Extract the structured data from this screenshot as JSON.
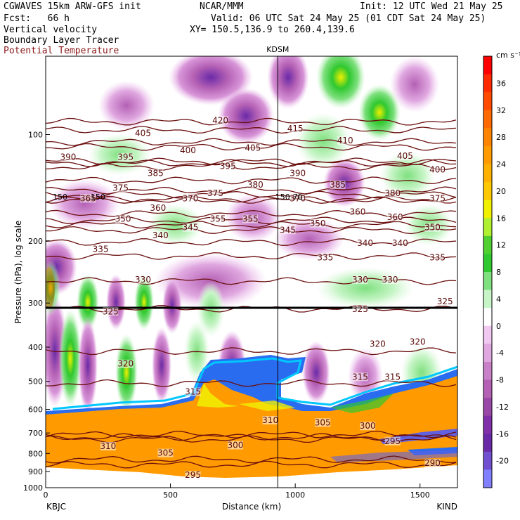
{
  "header": {
    "model_title": "CGWAVES 15km ARW-GFS init",
    "org": "NCAR/MMM",
    "init": "Init: 12 UTC Wed 21 May 25",
    "fcst": "Fcst:   66 h",
    "valid": "Valid: 06 UTC Sat 24 May 25 (01 CDT Sat 24 May 25)",
    "field1": "Vertical velocity",
    "field2": "Boundary Layer Tracer",
    "field3": "Potential Temperature",
    "xy": "XY= 150.5,136.9 to 260.4,139.6"
  },
  "colors": {
    "isentrope": "#6b0f0f",
    "positive_scale": [
      "#ffffff",
      "#c8f5c8",
      "#7fe07f",
      "#2fc82f",
      "#b0f030",
      "#f0f000",
      "#ffc800",
      "#ff9a00",
      "#ff6a00",
      "#ff3a00",
      "#ff0000"
    ],
    "negative_scale": [
      "#ffffff",
      "#f0c8f0",
      "#d896d8",
      "#b460b4",
      "#8c3aa0",
      "#6a2aa8",
      "#6060e0",
      "#8080ff"
    ]
  },
  "chart_data": {
    "type": "cross-section",
    "xlabel": "Distance (km)",
    "ylabel": "Pressure (hPa), log scale",
    "xlim": [
      0,
      1650
    ],
    "ylim": [
      1000,
      60
    ],
    "x_ticks": [
      0,
      500,
      1000,
      1500
    ],
    "y_ticks": [
      100,
      200,
      300,
      400,
      500,
      600,
      700,
      800,
      900,
      1000
    ],
    "endpoint_left": "KBJC",
    "endpoint_right": "KIND",
    "marker_station": "KDSM",
    "marker_distance_km": 930,
    "tropopause_pressure_hpa": 150,
    "colorbar": {
      "unit": "cm s⁻¹",
      "ticks": [
        36,
        32,
        28,
        24,
        20,
        16,
        12,
        8,
        4,
        0,
        -4,
        -8,
        -12,
        -16,
        -20
      ]
    },
    "isentropes": [
      {
        "theta": 420,
        "labels": [
          {
            "x": 700,
            "p": 92
          }
        ]
      },
      {
        "theta": 415,
        "labels": [
          {
            "x": 1000,
            "p": 97
          }
        ]
      },
      {
        "theta": 410,
        "labels": [
          {
            "x": 1200,
            "p": 105
          }
        ]
      },
      {
        "theta": 405,
        "labels": [
          {
            "x": 390,
            "p": 100
          },
          {
            "x": 830,
            "p": 110
          },
          {
            "x": 1440,
            "p": 116
          }
        ]
      },
      {
        "theta": 400,
        "labels": [
          {
            "x": 570,
            "p": 112
          },
          {
            "x": 1570,
            "p": 127
          }
        ]
      },
      {
        "theta": 395,
        "labels": [
          {
            "x": 320,
            "p": 117
          },
          {
            "x": 730,
            "p": 124
          }
        ]
      },
      {
        "theta": 390,
        "labels": [
          {
            "x": 90,
            "p": 117
          },
          {
            "x": 1010,
            "p": 130
          }
        ]
      },
      {
        "theta": 385,
        "labels": [
          {
            "x": 440,
            "p": 130
          },
          {
            "x": 1170,
            "p": 140
          }
        ]
      },
      {
        "theta": 380,
        "labels": [
          {
            "x": 840,
            "p": 140
          },
          {
            "x": 1390,
            "p": 148
          }
        ]
      },
      {
        "theta": 375,
        "labels": [
          {
            "x": 300,
            "p": 143
          },
          {
            "x": 680,
            "p": 148
          },
          {
            "x": 1570,
            "p": 153
          }
        ]
      },
      {
        "theta": 370,
        "labels": [
          {
            "x": 580,
            "p": 153
          },
          {
            "x": 1010,
            "p": 153
          }
        ]
      },
      {
        "theta": 365,
        "labels": [
          {
            "x": 170,
            "p": 153
          }
        ]
      },
      {
        "theta": 360,
        "labels": [
          {
            "x": 450,
            "p": 163
          },
          {
            "x": 1250,
            "p": 167
          },
          {
            "x": 1400,
            "p": 173
          }
        ]
      },
      {
        "theta": 355,
        "labels": [
          {
            "x": 690,
            "p": 175
          },
          {
            "x": 820,
            "p": 175
          }
        ]
      },
      {
        "theta": 350,
        "labels": [
          {
            "x": 310,
            "p": 175
          },
          {
            "x": 1090,
            "p": 180
          },
          {
            "x": 1550,
            "p": 185
          }
        ]
      },
      {
        "theta": 345,
        "labels": [
          {
            "x": 580,
            "p": 185
          },
          {
            "x": 970,
            "p": 188
          }
        ]
      },
      {
        "theta": 340,
        "labels": [
          {
            "x": 460,
            "p": 195
          },
          {
            "x": 1280,
            "p": 205
          },
          {
            "x": 1420,
            "p": 205
          }
        ]
      },
      {
        "theta": 335,
        "labels": [
          {
            "x": 220,
            "p": 213
          },
          {
            "x": 1120,
            "p": 225
          },
          {
            "x": 1570,
            "p": 225
          }
        ]
      },
      {
        "theta": 330,
        "labels": [
          {
            "x": 390,
            "p": 260
          },
          {
            "x": 1260,
            "p": 260
          },
          {
            "x": 1380,
            "p": 260
          }
        ]
      },
      {
        "theta": 325,
        "labels": [
          {
            "x": 260,
            "p": 320
          },
          {
            "x": 1260,
            "p": 315
          },
          {
            "x": 1600,
            "p": 300
          }
        ]
      },
      {
        "theta": 320,
        "labels": [
          {
            "x": 320,
            "p": 450
          },
          {
            "x": 1330,
            "p": 395
          },
          {
            "x": 1490,
            "p": 390
          }
        ]
      },
      {
        "theta": 315,
        "labels": [
          {
            "x": 590,
            "p": 540
          },
          {
            "x": 1260,
            "p": 490
          },
          {
            "x": 1390,
            "p": 490
          }
        ]
      },
      {
        "theta": 310,
        "labels": [
          {
            "x": 250,
            "p": 770
          },
          {
            "x": 900,
            "p": 650
          }
        ]
      },
      {
        "theta": 305,
        "labels": [
          {
            "x": 480,
            "p": 805
          },
          {
            "x": 1110,
            "p": 660
          }
        ]
      },
      {
        "theta": 300,
        "labels": [
          {
            "x": 760,
            "p": 765
          },
          {
            "x": 1290,
            "p": 675
          }
        ]
      },
      {
        "theta": 295,
        "labels": [
          {
            "x": 590,
            "p": 930
          },
          {
            "x": 1390,
            "p": 745
          }
        ]
      },
      {
        "theta": 290,
        "labels": [
          {
            "x": 1550,
            "p": 860
          }
        ]
      }
    ],
    "tropopause_labels": [
      "150",
      "150",
      "150",
      "70"
    ]
  }
}
